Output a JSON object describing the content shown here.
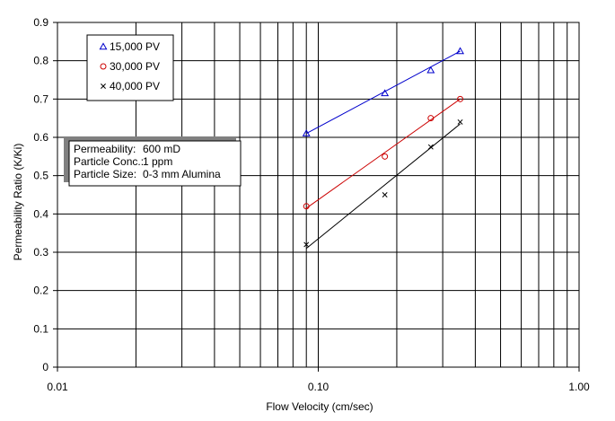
{
  "chart_data": {
    "type": "scatter",
    "title": "",
    "xlabel": "Flow Velocity (cm/sec)",
    "ylabel": "Permeability Ratio (K/Ki)",
    "x_scale": "log",
    "xlim": [
      0.01,
      1.0
    ],
    "ylim": [
      0,
      0.9
    ],
    "x_ticks": [
      {
        "value": 0.01,
        "label": "0.01"
      },
      {
        "value": 0.1,
        "label": "0.10"
      },
      {
        "value": 1.0,
        "label": "1.00"
      }
    ],
    "y_ticks": [
      {
        "value": 0,
        "label": "0"
      },
      {
        "value": 0.1,
        "label": "0.1"
      },
      {
        "value": 0.2,
        "label": "0.2"
      },
      {
        "value": 0.3,
        "label": "0.3"
      },
      {
        "value": 0.4,
        "label": "0.4"
      },
      {
        "value": 0.5,
        "label": "0.5"
      },
      {
        "value": 0.6,
        "label": "0.6"
      },
      {
        "value": 0.7,
        "label": "0.7"
      },
      {
        "value": 0.8,
        "label": "0.8"
      },
      {
        "value": 0.9,
        "label": "0.9"
      }
    ],
    "grid": true,
    "legend_position": "top-left",
    "series": [
      {
        "name": "15,000 PV",
        "marker": "triangle",
        "color": "#0000cc",
        "x": [
          0.09,
          0.18,
          0.27,
          0.35
        ],
        "y": [
          0.61,
          0.715,
          0.775,
          0.825
        ],
        "fit_line": {
          "x": [
            0.09,
            0.35
          ],
          "y": [
            0.61,
            0.825
          ]
        }
      },
      {
        "name": "30,000 PV",
        "marker": "circle",
        "color": "#cc0000",
        "x": [
          0.09,
          0.18,
          0.27,
          0.35
        ],
        "y": [
          0.42,
          0.55,
          0.65,
          0.7
        ],
        "fit_line": {
          "x": [
            0.09,
            0.35
          ],
          "y": [
            0.415,
            0.7
          ]
        }
      },
      {
        "name": "40,000 PV",
        "marker": "x",
        "color": "#000000",
        "x": [
          0.09,
          0.18,
          0.27,
          0.35
        ],
        "y": [
          0.32,
          0.45,
          0.575,
          0.64
        ],
        "fit_line": {
          "x": [
            0.09,
            0.35
          ],
          "y": [
            0.31,
            0.635
          ]
        }
      }
    ],
    "annotation": {
      "lines": [
        {
          "label": "Permeability:",
          "value": "600 mD"
        },
        {
          "label": "Particle Conc.:",
          "value": "1 ppm"
        },
        {
          "label": "Particle Size:",
          "value": "0-3 mm Alumina"
        }
      ]
    }
  }
}
